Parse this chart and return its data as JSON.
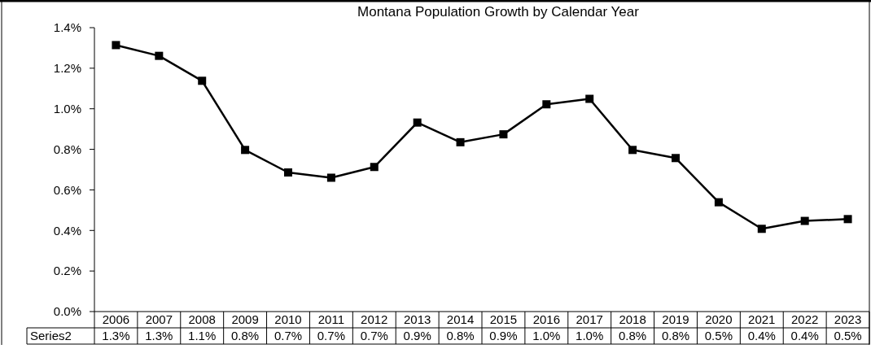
{
  "chart_data": {
    "type": "line",
    "title": "Montana Population Growth by Calendar Year",
    "categories": [
      "2006",
      "2007",
      "2008",
      "2009",
      "2010",
      "2011",
      "2012",
      "2013",
      "2014",
      "2015",
      "2016",
      "2017",
      "2018",
      "2019",
      "2020",
      "2021",
      "2022",
      "2023"
    ],
    "series": [
      {
        "name": "Series2",
        "color": "#000000",
        "values": [
          1.314,
          1.261,
          1.138,
          0.797,
          0.686,
          0.66,
          0.713,
          0.932,
          0.835,
          0.874,
          1.022,
          1.049,
          0.797,
          0.757,
          0.539,
          0.408,
          0.447,
          0.456
        ],
        "value_labels": [
          "1.3%",
          "1.3%",
          "1.1%",
          "0.8%",
          "0.7%",
          "0.7%",
          "0.7%",
          "0.9%",
          "0.8%",
          "0.9%",
          "1.0%",
          "1.0%",
          "0.8%",
          "0.8%",
          "0.5%",
          "0.4%",
          "0.4%",
          "0.5%"
        ]
      }
    ],
    "ylim": [
      0,
      1.4
    ],
    "yticks": [
      {
        "value": 0,
        "label": "0.0%"
      },
      {
        "value": 0.2,
        "label": "0.2%"
      },
      {
        "value": 0.4,
        "label": "0.4%"
      },
      {
        "value": 0.6,
        "label": "0.6%"
      },
      {
        "value": 0.8,
        "label": "0.8%"
      },
      {
        "value": 1.0,
        "label": "1.0%"
      },
      {
        "value": 1.2,
        "label": "1.2%"
      },
      {
        "value": 1.4,
        "label": "1.4%"
      }
    ],
    "grid": false,
    "marker": "square",
    "line_style": "solid",
    "legend": "bottom"
  }
}
